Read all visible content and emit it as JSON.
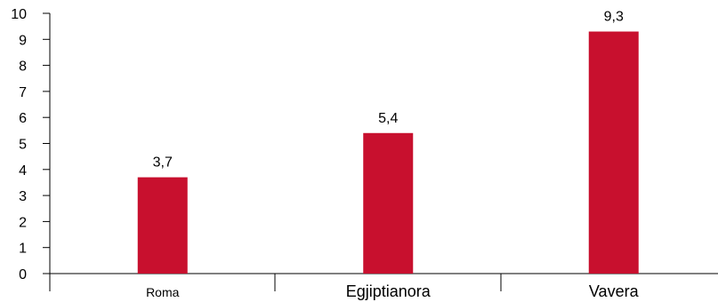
{
  "chart_data": {
    "type": "bar",
    "title": "",
    "xlabel": "",
    "ylabel": "",
    "categories": [
      "Roma",
      "Egjiptianora",
      "Vavera"
    ],
    "values": [
      3.7,
      5.4,
      9.3
    ],
    "data_labels": [
      "3,7",
      "5,4",
      "9,3"
    ],
    "ylim": [
      0,
      10
    ],
    "yticks": [
      "0",
      "1",
      "2",
      "3",
      "4",
      "5",
      "6",
      "7",
      "8",
      "9",
      "10"
    ],
    "grid": false,
    "legend": "none",
    "bar_color": "#c8102e",
    "axis_color": "#000000"
  }
}
